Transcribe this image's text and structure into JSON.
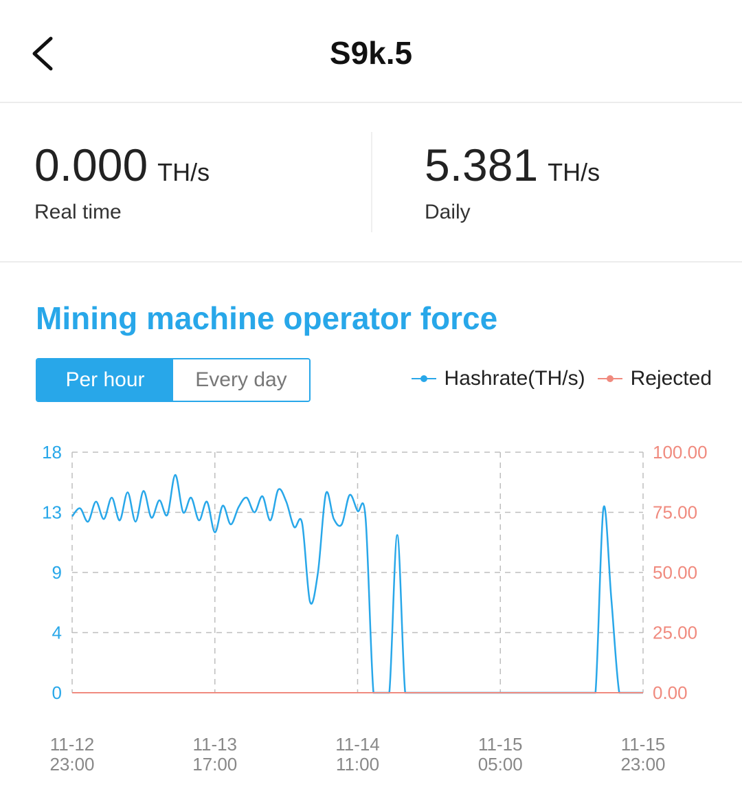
{
  "header": {
    "back_icon": "chevron-left-icon",
    "title": "S9k.5"
  },
  "stats": {
    "realtime": {
      "value": "0.000",
      "unit": "TH/s",
      "label": "Real time"
    },
    "daily": {
      "value": "5.381",
      "unit": "TH/s",
      "label": "Daily"
    }
  },
  "section": {
    "title": "Mining machine operator force"
  },
  "toggle": {
    "per_hour": "Per hour",
    "every_day": "Every day",
    "selected": "Per hour"
  },
  "colors": {
    "accent": "#28a7e9",
    "rejected": "#f08a7e",
    "grid": "#bdbdbd"
  },
  "chart_data": {
    "type": "line",
    "legend": [
      "Hashrate(TH/s)",
      "Rejected"
    ],
    "legend_position": "top-right",
    "grid": true,
    "y_left": {
      "ticks": [
        "18",
        "13",
        "9",
        "4",
        "0"
      ],
      "ylim": [
        0,
        18
      ]
    },
    "y_right": {
      "ticks": [
        "100.00",
        "75.00",
        "50.00",
        "25.00",
        "0.00"
      ],
      "ylim": [
        0,
        100
      ]
    },
    "x_ticks": [
      {
        "line1": "11-12",
        "line2": "23:00"
      },
      {
        "line1": "11-13",
        "line2": "17:00"
      },
      {
        "line1": "11-14",
        "line2": "11:00"
      },
      {
        "line1": "11-15",
        "line2": "05:00"
      },
      {
        "line1": "11-15",
        "line2": "23:00"
      }
    ],
    "x_hours_span": 72,
    "series": [
      {
        "name": "Hashrate(TH/s)",
        "axis": "left",
        "x": [
          0,
          1,
          2,
          3,
          4,
          5,
          6,
          7,
          8,
          9,
          10,
          11,
          12,
          13,
          14,
          15,
          16,
          17,
          18,
          19,
          20,
          21,
          22,
          23,
          24,
          25,
          26,
          27,
          28,
          29,
          30,
          31,
          32,
          33,
          34,
          35,
          36,
          37,
          38,
          39,
          40,
          41,
          42,
          43,
          44,
          45,
          46,
          47,
          48,
          49,
          50,
          51,
          52,
          53,
          54,
          55,
          56,
          57,
          58,
          59,
          60,
          61,
          62,
          63,
          64,
          65,
          66,
          67,
          68,
          69,
          70,
          71,
          72
        ],
        "values": [
          13.2,
          13.8,
          12.8,
          14.3,
          13.0,
          14.6,
          12.9,
          15.0,
          12.8,
          15.1,
          13.1,
          14.4,
          13.3,
          16.3,
          13.5,
          14.6,
          12.9,
          14.3,
          12.0,
          14.0,
          12.6,
          13.9,
          14.6,
          13.5,
          14.7,
          12.9,
          15.2,
          14.3,
          12.4,
          12.7,
          6.8,
          9.0,
          14.9,
          13.0,
          12.6,
          14.8,
          13.6,
          13.1,
          0,
          0,
          0,
          11.8,
          0,
          0,
          0,
          0,
          0,
          0,
          0,
          0,
          0,
          0,
          0,
          0,
          0,
          0,
          0,
          0,
          0,
          0,
          0,
          0,
          0,
          0,
          0,
          0,
          0,
          13.8,
          7.0,
          0,
          0,
          0,
          0
        ],
        "note_hidden": "",
        "color": "#28a7e9"
      },
      {
        "name": "Rejected",
        "axis": "right",
        "x": [
          0,
          72
        ],
        "values": [
          0,
          0
        ],
        "color": "#f08a7e"
      }
    ]
  }
}
